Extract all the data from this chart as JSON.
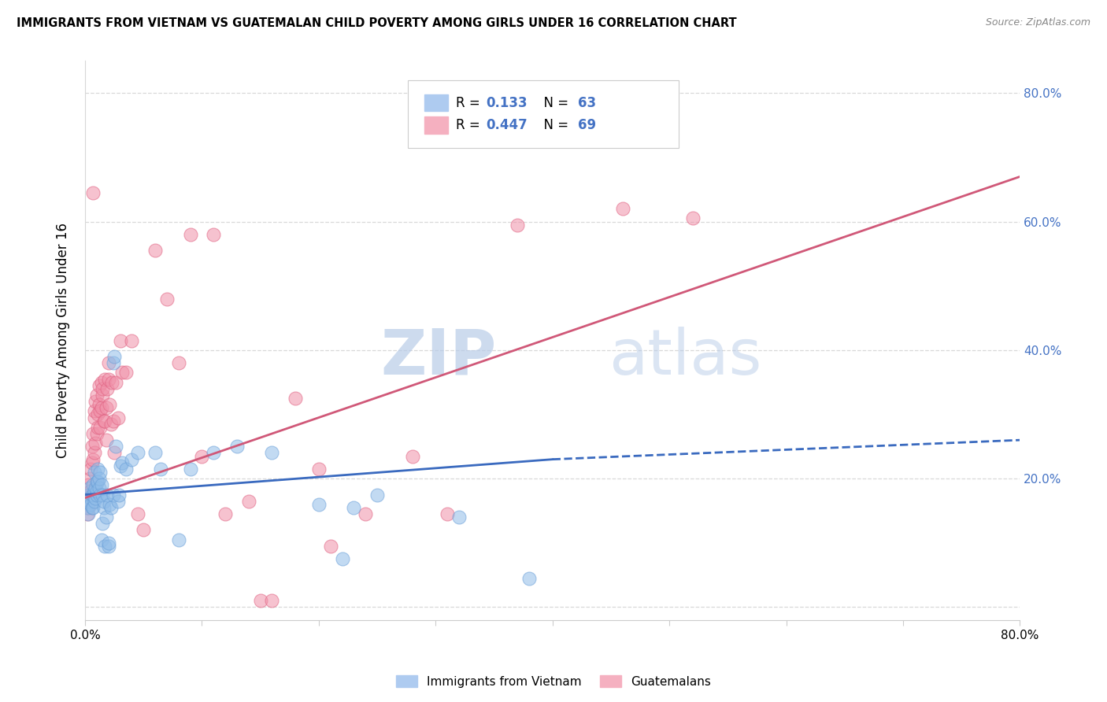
{
  "title": "IMMIGRANTS FROM VIETNAM VS GUATEMALAN CHILD POVERTY AMONG GIRLS UNDER 16 CORRELATION CHART",
  "source": "Source: ZipAtlas.com",
  "ylabel": "Child Poverty Among Girls Under 16",
  "xlim": [
    0.0,
    0.8
  ],
  "ylim": [
    -0.02,
    0.85
  ],
  "ytick_vals": [
    0.0,
    0.2,
    0.4,
    0.6,
    0.8
  ],
  "ytick_labels_right": [
    "",
    "20.0%",
    "40.0%",
    "60.0%",
    "80.0%"
  ],
  "xtick_vals": [
    0.0,
    0.1,
    0.2,
    0.3,
    0.4,
    0.5,
    0.6,
    0.7,
    0.8
  ],
  "xtick_labels": [
    "0.0%",
    "",
    "",
    "",
    "",
    "",
    "",
    "",
    "80.0%"
  ],
  "watermark_zip": "ZIP",
  "watermark_atlas": "atlas",
  "vietnam_color": "#90bce8",
  "vietnam_edge_color": "#6a9fd8",
  "guatemalan_color": "#f090a8",
  "guatemalan_edge_color": "#e06080",
  "vietnam_line_color": "#3a6abf",
  "guatemalan_line_color": "#d05878",
  "legend_box_blue": "#aecbf0",
  "legend_box_pink": "#f5b0c0",
  "legend_text_color": "#4472c4",
  "right_axis_color": "#4472c4",
  "grid_color": "#d8d8d8",
  "vietnam_scatter": [
    [
      0.002,
      0.155
    ],
    [
      0.003,
      0.175
    ],
    [
      0.003,
      0.145
    ],
    [
      0.004,
      0.165
    ],
    [
      0.004,
      0.185
    ],
    [
      0.005,
      0.17
    ],
    [
      0.005,
      0.16
    ],
    [
      0.006,
      0.175
    ],
    [
      0.006,
      0.155
    ],
    [
      0.007,
      0.175
    ],
    [
      0.007,
      0.19
    ],
    [
      0.007,
      0.155
    ],
    [
      0.008,
      0.165
    ],
    [
      0.008,
      0.21
    ],
    [
      0.008,
      0.18
    ],
    [
      0.009,
      0.185
    ],
    [
      0.009,
      0.17
    ],
    [
      0.01,
      0.195
    ],
    [
      0.01,
      0.175
    ],
    [
      0.01,
      0.18
    ],
    [
      0.011,
      0.215
    ],
    [
      0.011,
      0.195
    ],
    [
      0.012,
      0.185
    ],
    [
      0.012,
      0.2
    ],
    [
      0.013,
      0.21
    ],
    [
      0.013,
      0.175
    ],
    [
      0.014,
      0.19
    ],
    [
      0.014,
      0.105
    ],
    [
      0.015,
      0.175
    ],
    [
      0.015,
      0.13
    ],
    [
      0.016,
      0.155
    ],
    [
      0.016,
      0.165
    ],
    [
      0.017,
      0.095
    ],
    [
      0.018,
      0.14
    ],
    [
      0.019,
      0.175
    ],
    [
      0.02,
      0.095
    ],
    [
      0.02,
      0.1
    ],
    [
      0.021,
      0.16
    ],
    [
      0.022,
      0.155
    ],
    [
      0.024,
      0.175
    ],
    [
      0.024,
      0.38
    ],
    [
      0.025,
      0.39
    ],
    [
      0.026,
      0.25
    ],
    [
      0.028,
      0.165
    ],
    [
      0.029,
      0.175
    ],
    [
      0.03,
      0.22
    ],
    [
      0.032,
      0.225
    ],
    [
      0.035,
      0.215
    ],
    [
      0.04,
      0.23
    ],
    [
      0.045,
      0.24
    ],
    [
      0.06,
      0.24
    ],
    [
      0.065,
      0.215
    ],
    [
      0.08,
      0.105
    ],
    [
      0.09,
      0.215
    ],
    [
      0.11,
      0.24
    ],
    [
      0.13,
      0.25
    ],
    [
      0.16,
      0.24
    ],
    [
      0.2,
      0.16
    ],
    [
      0.22,
      0.075
    ],
    [
      0.23,
      0.155
    ],
    [
      0.25,
      0.175
    ],
    [
      0.32,
      0.14
    ],
    [
      0.38,
      0.045
    ]
  ],
  "guatemalan_scatter": [
    [
      0.002,
      0.145
    ],
    [
      0.003,
      0.155
    ],
    [
      0.003,
      0.19
    ],
    [
      0.004,
      0.175
    ],
    [
      0.004,
      0.2
    ],
    [
      0.005,
      0.215
    ],
    [
      0.005,
      0.18
    ],
    [
      0.006,
      0.225
    ],
    [
      0.006,
      0.25
    ],
    [
      0.007,
      0.27
    ],
    [
      0.007,
      0.23
    ],
    [
      0.007,
      0.645
    ],
    [
      0.008,
      0.295
    ],
    [
      0.008,
      0.305
    ],
    [
      0.008,
      0.24
    ],
    [
      0.009,
      0.32
    ],
    [
      0.009,
      0.255
    ],
    [
      0.01,
      0.33
    ],
    [
      0.01,
      0.27
    ],
    [
      0.011,
      0.28
    ],
    [
      0.011,
      0.3
    ],
    [
      0.012,
      0.345
    ],
    [
      0.012,
      0.315
    ],
    [
      0.013,
      0.305
    ],
    [
      0.013,
      0.28
    ],
    [
      0.014,
      0.35
    ],
    [
      0.014,
      0.31
    ],
    [
      0.015,
      0.33
    ],
    [
      0.015,
      0.34
    ],
    [
      0.016,
      0.29
    ],
    [
      0.017,
      0.355
    ],
    [
      0.017,
      0.29
    ],
    [
      0.018,
      0.31
    ],
    [
      0.018,
      0.26
    ],
    [
      0.019,
      0.34
    ],
    [
      0.02,
      0.38
    ],
    [
      0.02,
      0.355
    ],
    [
      0.021,
      0.315
    ],
    [
      0.022,
      0.285
    ],
    [
      0.023,
      0.35
    ],
    [
      0.024,
      0.29
    ],
    [
      0.025,
      0.24
    ],
    [
      0.026,
      0.35
    ],
    [
      0.028,
      0.295
    ],
    [
      0.03,
      0.415
    ],
    [
      0.032,
      0.365
    ],
    [
      0.035,
      0.365
    ],
    [
      0.04,
      0.415
    ],
    [
      0.045,
      0.145
    ],
    [
      0.05,
      0.12
    ],
    [
      0.06,
      0.555
    ],
    [
      0.07,
      0.48
    ],
    [
      0.08,
      0.38
    ],
    [
      0.09,
      0.58
    ],
    [
      0.1,
      0.235
    ],
    [
      0.11,
      0.58
    ],
    [
      0.12,
      0.145
    ],
    [
      0.14,
      0.165
    ],
    [
      0.15,
      0.01
    ],
    [
      0.16,
      0.01
    ],
    [
      0.18,
      0.325
    ],
    [
      0.2,
      0.215
    ],
    [
      0.21,
      0.095
    ],
    [
      0.24,
      0.145
    ],
    [
      0.28,
      0.235
    ],
    [
      0.31,
      0.145
    ],
    [
      0.37,
      0.595
    ],
    [
      0.46,
      0.62
    ],
    [
      0.52,
      0.605
    ]
  ],
  "vietnam_trend_x0": 0.0,
  "vietnam_trend_x1": 0.4,
  "vietnam_trend_y0": 0.175,
  "vietnam_trend_y1": 0.23,
  "vietnam_trend_dash_x0": 0.4,
  "vietnam_trend_dash_x1": 0.8,
  "vietnam_trend_dash_y0": 0.23,
  "vietnam_trend_dash_y1": 0.26,
  "guatemalan_trend_x0": 0.0,
  "guatemalan_trend_x1": 0.8,
  "guatemalan_trend_y0": 0.17,
  "guatemalan_trend_y1": 0.67
}
